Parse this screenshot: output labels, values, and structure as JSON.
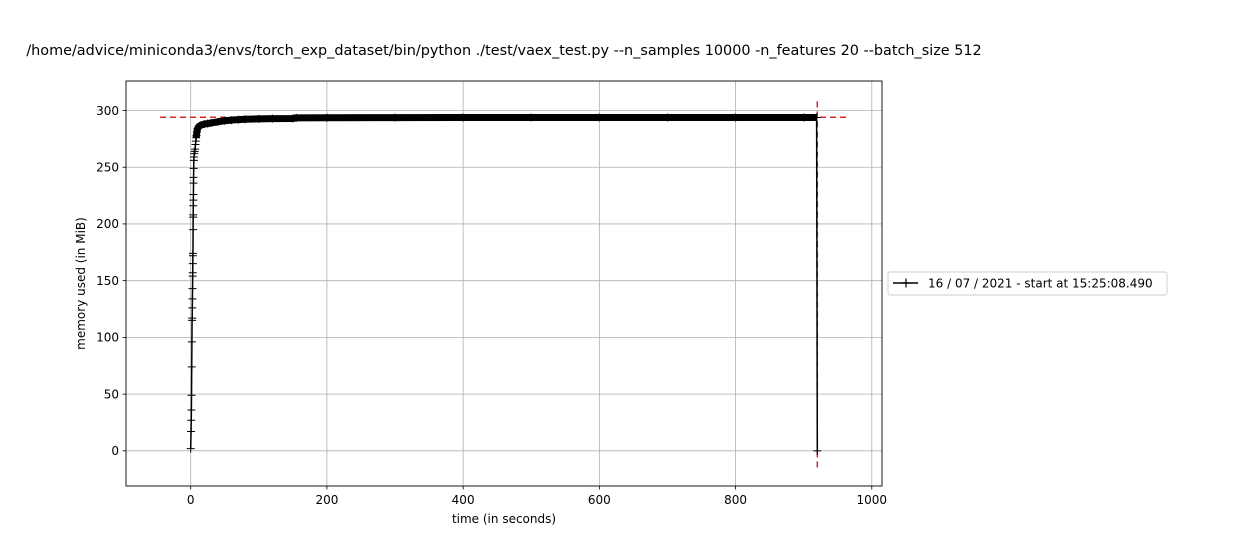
{
  "chart_data": {
    "type": "line",
    "title": "/home/advice/miniconda3/envs/torch_exp_dataset/bin/python ./test/vaex_test.py --n_samples 10000 -n_features 20 --batch_size 512",
    "xlabel": "time (in seconds)",
    "ylabel": "memory used (in MiB)",
    "xlim": [
      -95,
      1015
    ],
    "ylim": [
      -31,
      326
    ],
    "xticks": [
      0,
      200,
      400,
      600,
      800,
      1000
    ],
    "yticks": [
      0,
      50,
      100,
      150,
      200,
      250,
      300
    ],
    "grid": true,
    "legend_position": "center-right outside",
    "series": [
      {
        "name": "16 / 07 / 2021 - start at 15:25:08.490",
        "color": "#000000",
        "marker": "+",
        "points": [
          [
            0,
            2
          ],
          [
            0.5,
            17
          ],
          [
            0.8,
            27
          ],
          [
            1,
            36
          ],
          [
            1.2,
            49
          ],
          [
            1.5,
            74
          ],
          [
            1.8,
            96
          ],
          [
            2,
            115
          ],
          [
            2.2,
            117
          ],
          [
            2.4,
            126
          ],
          [
            2.5,
            134
          ],
          [
            2.7,
            143
          ],
          [
            2.9,
            154
          ],
          [
            3,
            157
          ],
          [
            3.1,
            165
          ],
          [
            3.2,
            172
          ],
          [
            3.3,
            174
          ],
          [
            3.5,
            195
          ],
          [
            3.6,
            206
          ],
          [
            3.7,
            208
          ],
          [
            3.8,
            216
          ],
          [
            3.9,
            221
          ],
          [
            4,
            226
          ],
          [
            4.1,
            236
          ],
          [
            4.2,
            241
          ],
          [
            4.4,
            249
          ],
          [
            4.6,
            256
          ],
          [
            4.8,
            259
          ],
          [
            5.2,
            262
          ],
          [
            5.8,
            264
          ],
          [
            6.5,
            266
          ],
          [
            7,
            270
          ],
          [
            7.5,
            273
          ],
          [
            8,
            276
          ],
          [
            8.5,
            278
          ],
          [
            9,
            281
          ],
          [
            10,
            284
          ],
          [
            12,
            286
          ],
          [
            15,
            287
          ],
          [
            20,
            288
          ],
          [
            25,
            288.5
          ],
          [
            30,
            289
          ],
          [
            40,
            290
          ],
          [
            50,
            291
          ],
          [
            60,
            291.5
          ],
          [
            70,
            292
          ],
          [
            80,
            292.3
          ],
          [
            100,
            292.6
          ],
          [
            120,
            292.8
          ],
          [
            150,
            293
          ],
          [
            155,
            293.5
          ],
          [
            200,
            293.6
          ],
          [
            300,
            293.7
          ],
          [
            400,
            293.8
          ],
          [
            500,
            293.8
          ],
          [
            600,
            293.8
          ],
          [
            700,
            293.8
          ],
          [
            800,
            293.8
          ],
          [
            900,
            293.8
          ],
          [
            919,
            293.8
          ],
          [
            920,
            0
          ]
        ]
      }
    ],
    "peak_marker": {
      "color": "#d62728",
      "peak_time": 920,
      "peak_memory": 294,
      "hline_xrange": [
        -45,
        968
      ],
      "vline_yrange": [
        -15,
        308
      ]
    }
  }
}
